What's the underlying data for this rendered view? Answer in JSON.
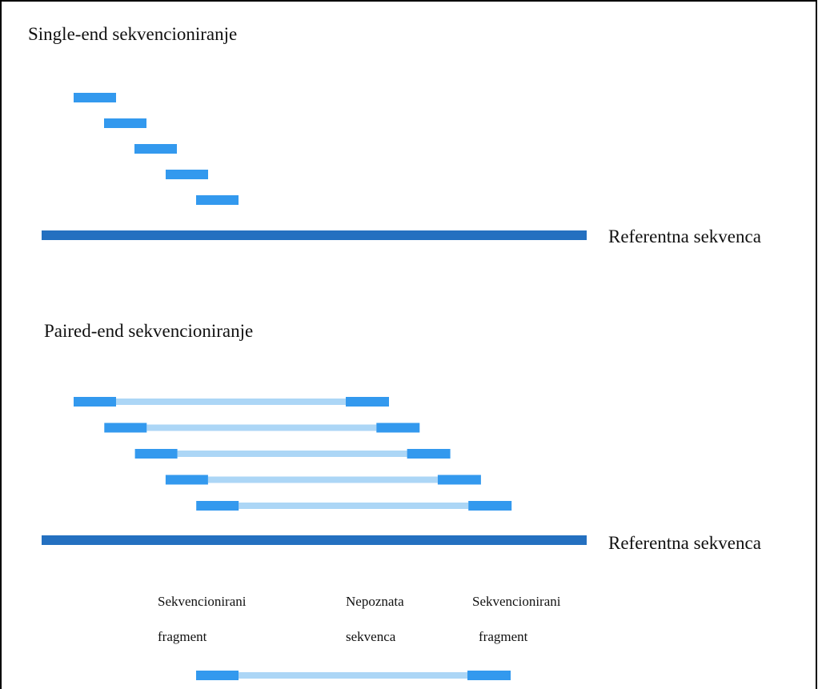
{
  "single_end": {
    "title": "Single-end sekvencioniranje",
    "reference_label": "Referentna sekvenca"
  },
  "paired_end": {
    "title": "Paired-end sekvencioniranje",
    "reference_label": "Referentna sekvenca"
  },
  "legend": {
    "items": [
      {
        "lines": [
          "Sekvencionirani",
          "fragment"
        ]
      },
      {
        "lines": [
          "Nepoznata",
          "sekvenca"
        ]
      },
      {
        "lines": [
          "Sekvencionirani",
          "fragment"
        ]
      }
    ]
  }
}
